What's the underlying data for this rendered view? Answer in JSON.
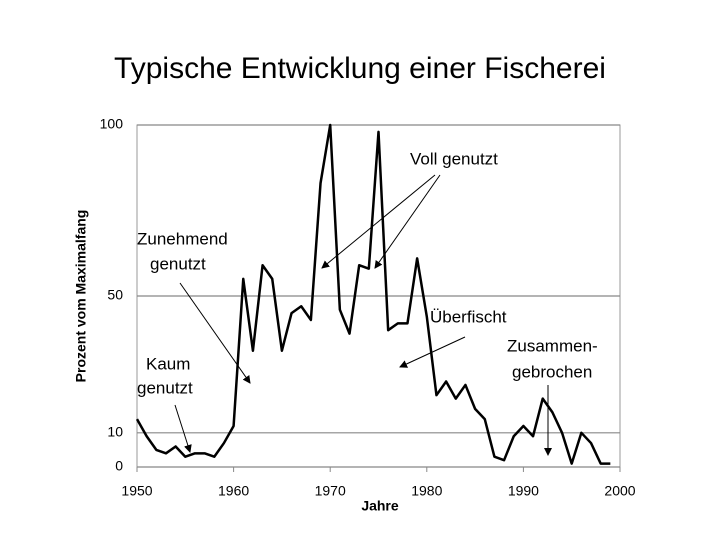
{
  "chart_data": {
    "type": "line",
    "title": "Typische Entwicklung einer Fischerei",
    "x_label": "Jahre",
    "y_label": "Prozent vom Maximalfang",
    "x": [
      1950,
      1951,
      1952,
      1953,
      1954,
      1955,
      1956,
      1957,
      1958,
      1959,
      1960,
      1961,
      1962,
      1963,
      1964,
      1965,
      1966,
      1967,
      1968,
      1969,
      1970,
      1971,
      1972,
      1973,
      1974,
      1975,
      1976,
      1977,
      1978,
      1979,
      1980,
      1981,
      1982,
      1983,
      1984,
      1985,
      1986,
      1987,
      1988,
      1989,
      1990,
      1991,
      1992,
      1993,
      1994,
      1995,
      1996,
      1997,
      1998,
      1999
    ],
    "values": [
      14,
      9,
      5,
      4,
      6,
      3,
      4,
      4,
      3,
      7,
      12,
      55,
      34,
      59,
      55,
      34,
      45,
      47,
      43,
      83,
      100,
      46,
      39,
      59,
      58,
      98,
      40,
      42,
      42,
      61,
      44,
      21,
      25,
      20,
      24,
      17,
      14,
      3,
      2,
      9,
      12,
      9,
      20,
      16,
      10,
      1,
      10,
      7,
      1,
      1
    ],
    "color": "#000000",
    "xlim": [
      1950,
      2000
    ],
    "xticks": [
      1950,
      1960,
      1970,
      1980,
      1990,
      2000
    ],
    "ylim": [
      0,
      100
    ],
    "yticks": [
      0,
      10,
      50,
      100
    ],
    "grid": true,
    "annotations": [
      {
        "lines": [
          "Voll genutzt"
        ]
      },
      {
        "lines": [
          "Zunehmend",
          "genutzt"
        ]
      },
      {
        "lines": [
          "Überfischt"
        ]
      },
      {
        "lines": [
          "Kaum",
          "genutzt"
        ]
      },
      {
        "lines": [
          "Zusammen-",
          "gebrochen"
        ]
      }
    ]
  }
}
